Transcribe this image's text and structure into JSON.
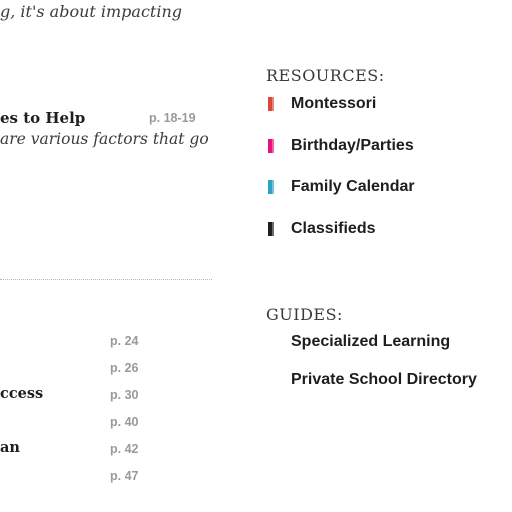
{
  "intro": {
    "text": "g, it's about impacting"
  },
  "feature": {
    "title": "es to Help",
    "page": "p. 18-19",
    "desc": "are various factors that go"
  },
  "toc": {
    "items": [
      {
        "title": "",
        "page": "p. 24"
      },
      {
        "title": "",
        "page": "p. 26"
      },
      {
        "title": "ccess",
        "page": "p. 30"
      },
      {
        "title": "",
        "page": "p. 40"
      },
      {
        "title": "an",
        "page": "p. 42"
      },
      {
        "title": "",
        "page": "p. 47"
      }
    ]
  },
  "resources": {
    "heading": "RESOURCES:",
    "items": [
      {
        "label": "Montessori",
        "color": "#d9473a"
      },
      {
        "label": "Birthday/Parties",
        "color": "#e6137f"
      },
      {
        "label": "Family Calendar",
        "color": "#2ba3c4"
      },
      {
        "label": "Classifieds",
        "color": "#1f1f1f"
      }
    ]
  },
  "guides": {
    "heading": "GUIDES:",
    "items": [
      {
        "label": "Specialized Learning"
      },
      {
        "label": "Private School Directory"
      }
    ]
  }
}
